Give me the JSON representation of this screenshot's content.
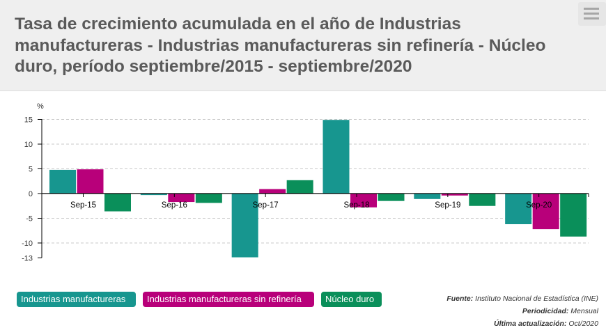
{
  "header": {
    "title": "Tasa de crecimiento acumulada en el año de Industrias manufactureras - Industrias manufactureras sin refinería - Núcleo duro, período septiembre/2015 - septiembre/2020",
    "menu_icon": "hamburger-menu-icon"
  },
  "chart_data": {
    "type": "bar",
    "categories": [
      "Sep-15",
      "Sep-16",
      "Sep-17",
      "Sep-18",
      "Sep-19",
      "Sep-20"
    ],
    "series": [
      {
        "name": "Industrias manufactureras",
        "color": "#17968f",
        "values": [
          4.8,
          -0.3,
          -12.9,
          14.9,
          -1.1,
          -6.2
        ]
      },
      {
        "name": "Industrias manufactureras sin refinería",
        "color": "#b8007a",
        "values": [
          4.9,
          -1.7,
          0.9,
          -2.8,
          -0.4,
          -7.2
        ]
      },
      {
        "name": "Núcleo duro",
        "color": "#0a8f5a",
        "values": [
          -3.6,
          -1.9,
          2.7,
          -1.5,
          -2.5,
          -8.7
        ]
      }
    ],
    "ylabel": "%",
    "yticks": [
      15,
      10,
      5,
      0,
      -5,
      -10,
      -13
    ],
    "ylim": [
      -13,
      15
    ],
    "grid": true,
    "legend_position": "bottom-left"
  },
  "legend": {
    "items": [
      {
        "label": "Industrias manufactureras",
        "color": "#17968f"
      },
      {
        "label": "Industrias manufactureras sin refinería",
        "color": "#b8007a"
      },
      {
        "label": "Núcleo duro",
        "color": "#0a8f5a"
      }
    ]
  },
  "source": {
    "fuente_label": "Fuente:",
    "fuente_value": "Instituto Nacional de Estadística (INE)",
    "periodicidad_label": "Periodicidad:",
    "periodicidad_value": "Mensual",
    "actualizacion_label": "Última actualización:",
    "actualizacion_value": "Oct/2020"
  }
}
